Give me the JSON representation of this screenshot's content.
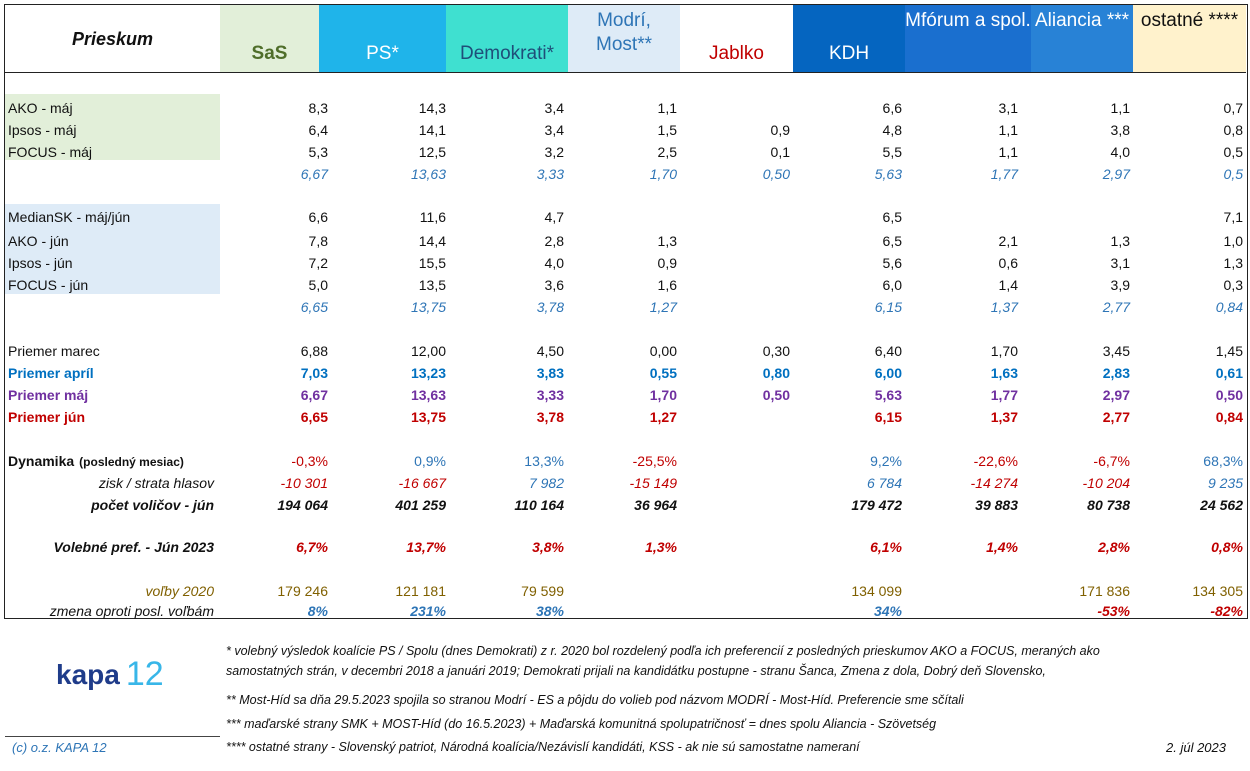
{
  "header": {
    "prieskum": "Prieskum",
    "parties": [
      {
        "label": "SaS",
        "color": "#4f6e2a",
        "bg": "#e2efd9",
        "bold": true
      },
      {
        "label": "PS*",
        "color": "#ffffff",
        "bg": "#1fb4ea",
        "bold": false
      },
      {
        "label": "Demokrati*",
        "color": "#1f4e79",
        "bg": "#3fe0d0",
        "bold": false
      },
      {
        "label": "Modrí, Most**",
        "color": "#2e75b6",
        "bg": "#deebf7",
        "bold": false
      },
      {
        "label": "Jablko",
        "color": "#c00000",
        "bg": "#ffffff",
        "bold": false
      },
      {
        "label": "KDH",
        "color": "#ffffff",
        "bg": "#0565c0",
        "bold": false
      },
      {
        "label": "Mfórum a spol.",
        "color": "#ffffff",
        "bg": "#1a6fcf",
        "bold": false
      },
      {
        "label": "Aliancia ***",
        "color": "#ffffff",
        "bg": "#2882d6",
        "bold": false
      },
      {
        "label": "ostatné ****",
        "color": "#111111",
        "bg": "#fff2cc",
        "bold": false
      }
    ]
  },
  "sections": [
    {
      "label": "AKO - máj",
      "values": [
        "8,3",
        "14,3",
        "3,4",
        "1,1",
        "",
        "6,6",
        "3,1",
        "1,1",
        "0,7"
      ]
    },
    {
      "label": "Ipsos - máj",
      "values": [
        "6,4",
        "14,1",
        "3,4",
        "1,5",
        "0,9",
        "4,8",
        "1,1",
        "3,8",
        "0,8"
      ]
    },
    {
      "label": "FOCUS - máj",
      "values": [
        "5,3",
        "12,5",
        "3,2",
        "2,5",
        "0,1",
        "5,5",
        "1,1",
        "4,0",
        "0,5"
      ]
    },
    {
      "label": "",
      "values": [
        "6,67",
        "13,63",
        "3,33",
        "1,70",
        "0,50",
        "5,63",
        "1,77",
        "2,97",
        "0,5"
      ]
    },
    {
      "label": "MedianSK - máj/jún",
      "values": [
        "6,6",
        "11,6",
        "4,7",
        "",
        "",
        "6,5",
        "",
        "",
        "7,1"
      ]
    },
    {
      "label": "AKO - jún",
      "values": [
        "7,8",
        "14,4",
        "2,8",
        "1,3",
        "",
        "6,5",
        "2,1",
        "1,3",
        "1,0"
      ]
    },
    {
      "label": "Ipsos - jún",
      "values": [
        "7,2",
        "15,5",
        "4,0",
        "0,9",
        "",
        "5,6",
        "0,6",
        "3,1",
        "1,3"
      ]
    },
    {
      "label": "FOCUS - jún",
      "values": [
        "5,0",
        "13,5",
        "3,6",
        "1,6",
        "",
        "6,0",
        "1,4",
        "3,9",
        "0,3"
      ]
    },
    {
      "label": "",
      "values": [
        "6,65",
        "13,75",
        "3,78",
        "1,27",
        "",
        "6,15",
        "1,37",
        "2,77",
        "0,84"
      ]
    },
    {
      "label": "Priemer marec",
      "values": [
        "6,88",
        "12,00",
        "4,50",
        "0,00",
        "0,30",
        "6,40",
        "1,70",
        "3,45",
        "1,45"
      ]
    },
    {
      "label": "Priemer apríl",
      "values": [
        "7,03",
        "13,23",
        "3,83",
        "0,55",
        "0,80",
        "6,00",
        "1,63",
        "2,83",
        "0,61"
      ]
    },
    {
      "label": "Priemer máj",
      "values": [
        "6,67",
        "13,63",
        "3,33",
        "1,70",
        "0,50",
        "5,63",
        "1,77",
        "2,97",
        "0,50"
      ]
    },
    {
      "label": "Priemer jún",
      "values": [
        "6,65",
        "13,75",
        "3,78",
        "1,27",
        "",
        "6,15",
        "1,37",
        "2,77",
        "0,84"
      ]
    },
    {
      "label": "Dynamika",
      "label_small": "(posledný mesiac)",
      "values": [
        "-0,3%",
        "0,9%",
        "13,3%",
        "-25,5%",
        "",
        "9,2%",
        "-22,6%",
        "-6,7%",
        "68,3%"
      ]
    },
    {
      "label": "zisk / strata hlasov",
      "values": [
        "-10 301",
        "-16 667",
        "7 982",
        "-15 149",
        "",
        "6 784",
        "-14 274",
        "-10 204",
        "9 235"
      ]
    },
    {
      "label": "počet voličov - jún",
      "values": [
        "194 064",
        "401 259",
        "110 164",
        "36 964",
        "",
        "179 472",
        "39 883",
        "80 738",
        "24 562"
      ]
    },
    {
      "label": "Volebné pref. - Jún 2023",
      "values": [
        "6,7%",
        "13,7%",
        "3,8%",
        "1,3%",
        "",
        "6,1%",
        "1,4%",
        "2,8%",
        "0,8%"
      ]
    },
    {
      "label": "voľby 2020",
      "values": [
        "179 246",
        "121 181",
        "79 599",
        "",
        "",
        "134 099",
        "",
        "171 836",
        "134 305"
      ]
    },
    {
      "label": "zmena oproti posl. voľbám",
      "values": [
        "8%",
        "231%",
        "38%",
        "",
        "",
        "34%",
        "",
        "-53%",
        "-82%"
      ]
    }
  ],
  "footer": {
    "logo_text": "kapa",
    "logo_num": "12",
    "copyright": "(c) o.z. KAPA 12",
    "date": "2. júl 2023",
    "notes": [
      "* volebný výsledok koalície PS / Spolu (dnes Demokrati) z r. 2020 bol rozdelený podľa ich preferencií z posledných prieskumov AKO a FOCUS, meraných ako",
      "samostatných strán, v decembri 2018 a januári 2019; Demokrati prijali na kandidátku postupne - stranu Šanca, Zmena z dola, Dobrý deň Slovensko,",
      "** Most-Híd sa dňa 29.5.2023 spojila so stranou Modrí - ES a pôjdu do volieb pod názvom MODRÍ - Most-Híd. Preferencie sme sčítali",
      "*** maďarské strany SMK + MOST-Híd (do 16.5.2023) + Maďarská komunitná spolupatričnosť = dnes spolu Aliancia - Szövetség",
      "**** ostatné strany - Slovenský patriot, Národná koalícia/Nezávislí kandidáti, KSS - ak nie sú samostatne nameraní"
    ]
  },
  "colors": {
    "green_bg": "#e2efd9",
    "blue_bg": "#deebf7",
    "avg_blue": "#2e75b6",
    "april_blue": "#0070c0",
    "may_purple": "#7030a0",
    "june_red": "#c00000",
    "olive": "#806000"
  }
}
